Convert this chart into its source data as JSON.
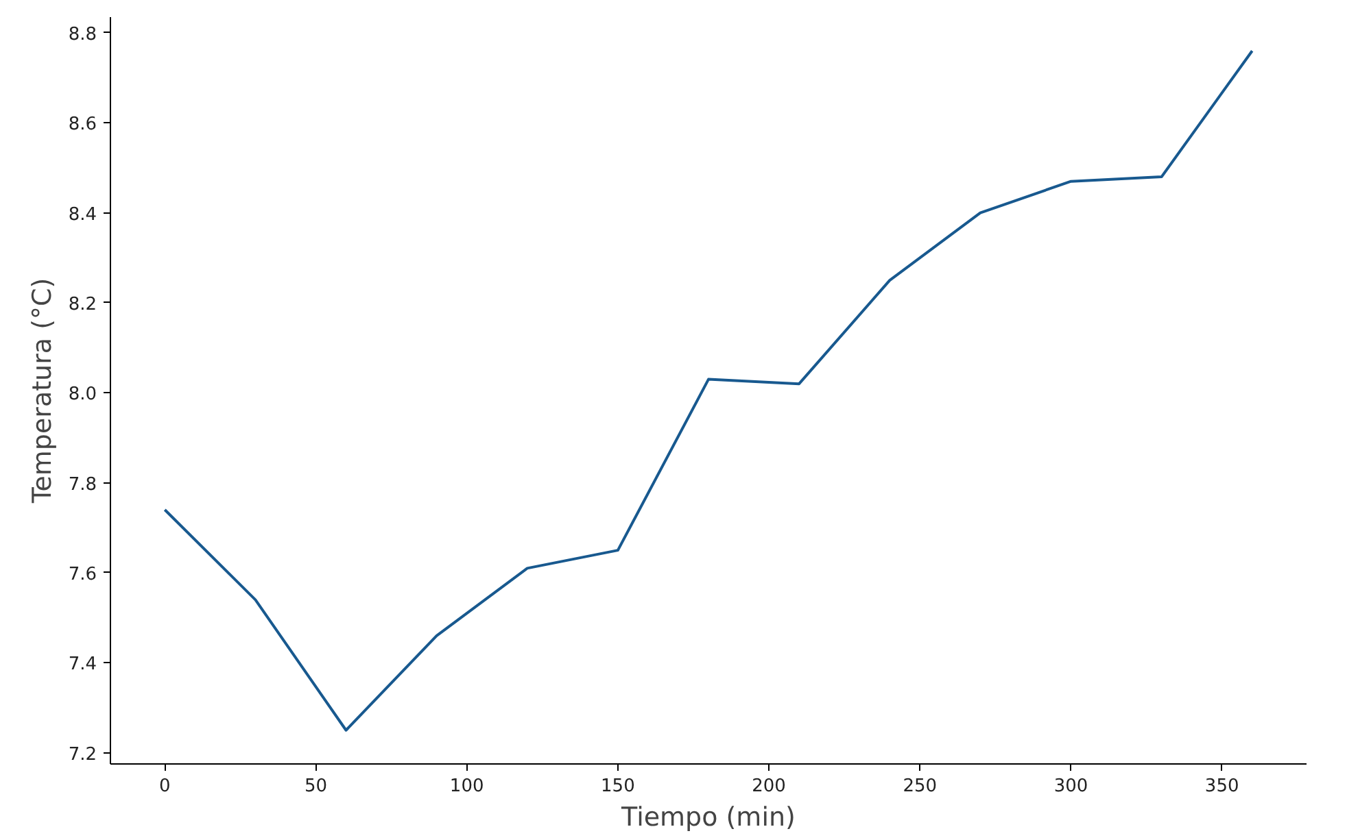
{
  "chart_data": {
    "type": "line",
    "xlabel": "Tiempo (min)",
    "ylabel": "Temperatura (°C)",
    "x": [
      0,
      30,
      60,
      90,
      120,
      150,
      180,
      210,
      240,
      270,
      300,
      330,
      360
    ],
    "series": [
      {
        "color": "#18598f",
        "values": [
          7.74,
          7.54,
          7.25,
          7.46,
          7.61,
          7.65,
          8.03,
          8.02,
          8.25,
          8.4,
          8.47,
          8.48,
          8.76
        ]
      }
    ],
    "xlim": [
      -18,
      378
    ],
    "ylim": [
      7.175,
      8.835
    ],
    "xticks": [
      0,
      50,
      100,
      150,
      200,
      250,
      300,
      350
    ],
    "yticks": [
      {
        "value": 7.2,
        "label": "7.2"
      },
      {
        "value": 7.4,
        "label": "7.4"
      },
      {
        "value": 7.6,
        "label": "7.6"
      },
      {
        "value": 7.8,
        "label": "7.8"
      },
      {
        "value": 8.0,
        "label": "8.0"
      },
      {
        "value": 8.2,
        "label": "8.2"
      },
      {
        "value": 8.4,
        "label": "8.4"
      },
      {
        "value": 8.6,
        "label": "8.6"
      },
      {
        "value": 8.8,
        "label": "8.8"
      }
    ],
    "grid": false,
    "marker": "none",
    "line_style": "solid"
  }
}
